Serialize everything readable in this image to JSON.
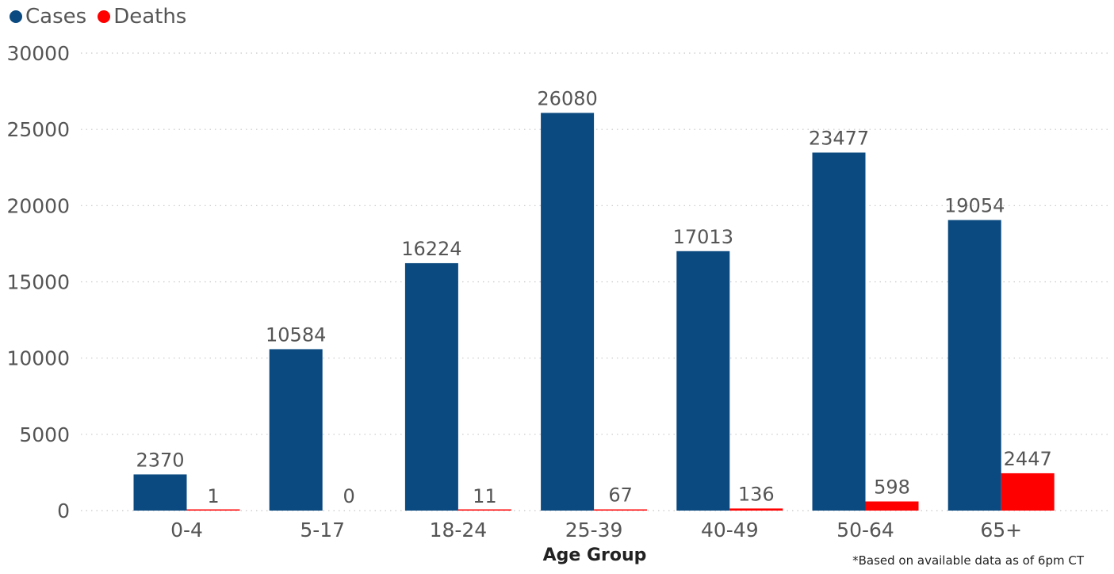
{
  "legend": {
    "cases_label": "Cases",
    "deaths_label": "Deaths"
  },
  "colors": {
    "cases": "#0b4a80",
    "deaths": "#ff0000",
    "axis_text": "#555555",
    "gridline": "#c8c8c8"
  },
  "footnote": "*Based on available data as of 6pm CT",
  "chart_data": {
    "type": "bar",
    "xlabel": "Age Group",
    "ylabel": "",
    "ylim": [
      0,
      30000
    ],
    "yticks": [
      0,
      5000,
      10000,
      15000,
      20000,
      25000,
      30000
    ],
    "grid": true,
    "legend_position": "top-left",
    "categories": [
      "0-4",
      "5-17",
      "18-24",
      "25-39",
      "40-49",
      "50-64",
      "65+"
    ],
    "series": [
      {
        "name": "Cases",
        "values": [
          2370,
          10584,
          16224,
          26080,
          17013,
          23477,
          19054
        ]
      },
      {
        "name": "Deaths",
        "values": [
          1,
          0,
          11,
          67,
          136,
          598,
          2447
        ]
      }
    ]
  }
}
